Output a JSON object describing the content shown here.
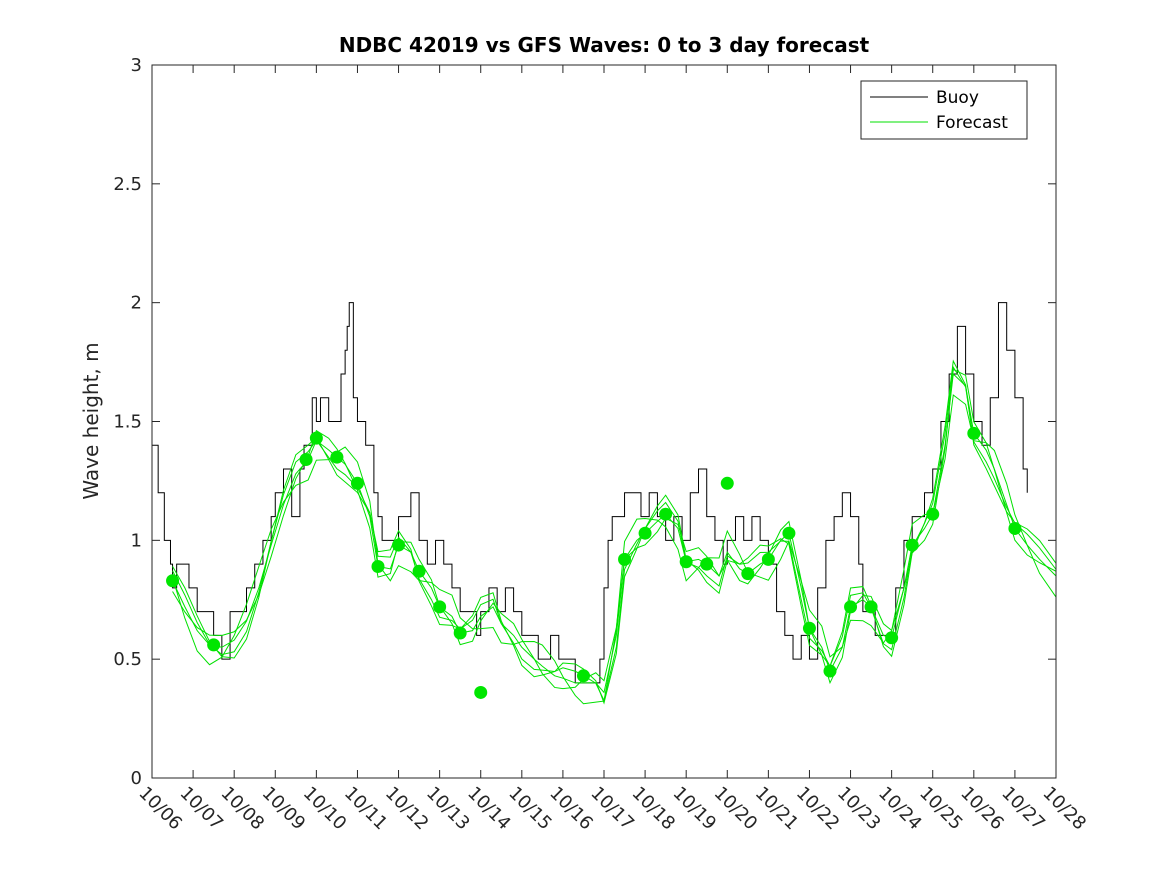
{
  "chart_data": {
    "type": "line",
    "title": "NDBC 42019 vs GFS Waves: 0 to 3 day forecast",
    "xlabel": "",
    "ylabel": "Wave height, m",
    "ylim": [
      0,
      3
    ],
    "xlim": [
      0,
      22
    ],
    "yticks": [
      0,
      0.5,
      1,
      1.5,
      2,
      2.5,
      3
    ],
    "ytick_labels": [
      "0",
      "0.5",
      "1",
      "1.5",
      "2",
      "2.5",
      "3"
    ],
    "xtick_labels": [
      "10/06",
      "10/07",
      "10/08",
      "10/09",
      "10/10",
      "10/11",
      "10/12",
      "10/13",
      "10/14",
      "10/15",
      "10/16",
      "10/17",
      "10/18",
      "10/19",
      "10/20",
      "10/21",
      "10/22",
      "10/23",
      "10/24",
      "10/25",
      "10/26",
      "10/27",
      "10/28"
    ],
    "x_units": "days since 10/06",
    "legend": {
      "position": "top-right",
      "entries": [
        {
          "label": "Buoy",
          "color": "#000000"
        },
        {
          "label": "Forecast",
          "color": "#00e000"
        }
      ]
    },
    "colors": {
      "buoy": "#000000",
      "forecast": "#00e000",
      "markers": "#00e600"
    },
    "series": [
      {
        "name": "Buoy",
        "x": [
          0,
          0.15,
          0.3,
          0.45,
          0.5,
          0.6,
          0.9,
          1.1,
          1.5,
          1.7,
          1.9,
          2.0,
          2.1,
          2.3,
          2.5,
          2.7,
          2.9,
          3.0,
          3.2,
          3.4,
          3.6,
          3.7,
          3.9,
          4.0,
          4.1,
          4.3,
          4.6,
          4.7,
          4.75,
          4.8,
          4.9,
          5.0,
          5.2,
          5.4,
          5.5,
          5.6,
          5.7,
          6.0,
          6.3,
          6.5,
          6.7,
          6.9,
          7.1,
          7.3,
          7.5,
          7.7,
          7.9,
          8.0,
          8.2,
          8.4,
          8.6,
          8.8,
          9.0,
          9.2,
          9.4,
          9.5,
          9.7,
          9.9,
          10.1,
          10.3,
          10.5,
          10.7,
          10.9,
          11.0,
          11.1,
          11.2,
          11.5,
          11.7,
          11.9,
          12.1,
          12.3,
          12.5,
          12.7,
          12.9,
          13.1,
          13.3,
          13.5,
          13.7,
          13.9,
          14.0,
          14.2,
          14.4,
          14.6,
          14.8,
          15.0,
          15.2,
          15.4,
          15.6,
          15.8,
          16.0,
          16.2,
          16.4,
          16.6,
          16.8,
          17.0,
          17.2,
          17.3,
          17.6,
          17.9,
          18.1,
          18.3,
          18.5,
          18.8,
          19.0,
          19.2,
          19.4,
          19.6,
          19.8,
          20.0,
          20.2,
          20.4,
          20.6,
          20.8,
          21.0,
          21.2,
          21.3
        ],
        "y": [
          1.4,
          1.2,
          1.0,
          0.9,
          0.8,
          0.9,
          0.8,
          0.7,
          0.6,
          0.5,
          0.7,
          0.7,
          0.7,
          0.8,
          0.9,
          1.0,
          1.1,
          1.2,
          1.3,
          1.1,
          1.3,
          1.4,
          1.6,
          1.5,
          1.6,
          1.5,
          1.7,
          1.8,
          1.9,
          2.0,
          1.6,
          1.5,
          1.4,
          1.2,
          1.1,
          1.0,
          1.0,
          1.1,
          1.2,
          1.0,
          0.9,
          1.0,
          0.9,
          0.8,
          0.7,
          0.7,
          0.6,
          0.7,
          0.8,
          0.7,
          0.8,
          0.7,
          0.6,
          0.6,
          0.5,
          0.5,
          0.6,
          0.5,
          0.5,
          0.4,
          0.4,
          0.4,
          0.5,
          0.8,
          1.0,
          1.1,
          1.2,
          1.2,
          1.1,
          1.2,
          1.1,
          1.0,
          1.1,
          1.0,
          1.2,
          1.3,
          1.1,
          1.0,
          0.9,
          1.0,
          1.1,
          1.0,
          1.1,
          1.0,
          0.9,
          0.7,
          0.6,
          0.5,
          0.6,
          0.5,
          0.8,
          1.0,
          1.1,
          1.2,
          1.1,
          0.9,
          0.7,
          0.6,
          0.6,
          0.8,
          1.0,
          1.1,
          1.2,
          1.3,
          1.5,
          1.7,
          1.9,
          1.7,
          1.5,
          1.4,
          1.6,
          2.0,
          1.8,
          1.6,
          1.3,
          1.2
        ]
      },
      {
        "name": "Forecast",
        "x": [
          0.5,
          0.8,
          1.1,
          1.4,
          1.7,
          2.0,
          2.3,
          2.6,
          2.9,
          3.2,
          3.5,
          3.8,
          4.0,
          4.3,
          4.5,
          4.7,
          5.0,
          5.3,
          5.5,
          5.8,
          6.0,
          6.3,
          6.5,
          6.8,
          7.0,
          7.3,
          7.5,
          7.8,
          8.0,
          8.3,
          8.5,
          8.8,
          9.0,
          9.3,
          9.5,
          9.8,
          10.0,
          10.3,
          10.5,
          10.8,
          11.0,
          11.3,
          11.5,
          11.8,
          12.0,
          12.3,
          12.5,
          12.8,
          13.0,
          13.3,
          13.5,
          13.8,
          14.0,
          14.3,
          14.5,
          14.8,
          15.0,
          15.3,
          15.5,
          15.8,
          16.0,
          16.3,
          16.5,
          16.8,
          17.0,
          17.3,
          17.5,
          17.8,
          18.0,
          18.3,
          18.5,
          18.8,
          19.0,
          19.3,
          19.5,
          19.8,
          20.0,
          20.3,
          20.5,
          20.8,
          21.0,
          21.3,
          21.6,
          22.0
        ],
        "y": [
          0.83,
          0.72,
          0.62,
          0.56,
          0.55,
          0.58,
          0.66,
          0.8,
          0.98,
          1.15,
          1.28,
          1.34,
          1.42,
          1.38,
          1.35,
          1.32,
          1.24,
          1.1,
          0.89,
          0.88,
          0.98,
          0.95,
          0.87,
          0.8,
          0.72,
          0.68,
          0.61,
          0.62,
          0.68,
          0.72,
          0.65,
          0.6,
          0.55,
          0.5,
          0.47,
          0.43,
          0.42,
          0.4,
          0.4,
          0.4,
          0.36,
          0.6,
          0.92,
          1.0,
          1.03,
          1.08,
          1.11,
          1.05,
          0.91,
          0.92,
          0.9,
          0.85,
          0.95,
          0.88,
          0.86,
          0.9,
          0.92,
          1.0,
          1.03,
          0.8,
          0.63,
          0.55,
          0.45,
          0.55,
          0.72,
          0.75,
          0.72,
          0.6,
          0.59,
          0.8,
          0.98,
          1.05,
          1.11,
          1.4,
          1.7,
          1.65,
          1.45,
          1.38,
          1.3,
          1.15,
          1.05,
          0.98,
          0.92,
          0.85
        ]
      }
    ],
    "markers": {
      "name": "Forecast (analysis points)",
      "x": [
        0.5,
        1.5,
        3.75,
        4.0,
        4.5,
        5.0,
        5.5,
        6.0,
        6.5,
        7.0,
        7.5,
        8.0,
        11.5,
        12.0,
        12.5,
        13.0,
        13.5,
        14.0,
        14.5,
        15.0,
        15.5,
        16.0,
        16.5,
        17.0,
        17.5,
        18.0,
        18.5,
        19.0,
        20.0,
        21.0
      ],
      "y": [
        0.83,
        0.56,
        1.34,
        1.43,
        1.35,
        1.24,
        0.89,
        0.98,
        0.87,
        0.72,
        0.61,
        0.36,
        0.92,
        1.03,
        1.11,
        0.91,
        0.9,
        1.24,
        0.86,
        0.92,
        1.03,
        0.63,
        0.45,
        0.72,
        0.72,
        0.59,
        0.98,
        1.11,
        1.45,
        1.05
      ],
      "extra_points": [
        {
          "x": 10.5,
          "y": 0.43
        }
      ]
    }
  }
}
